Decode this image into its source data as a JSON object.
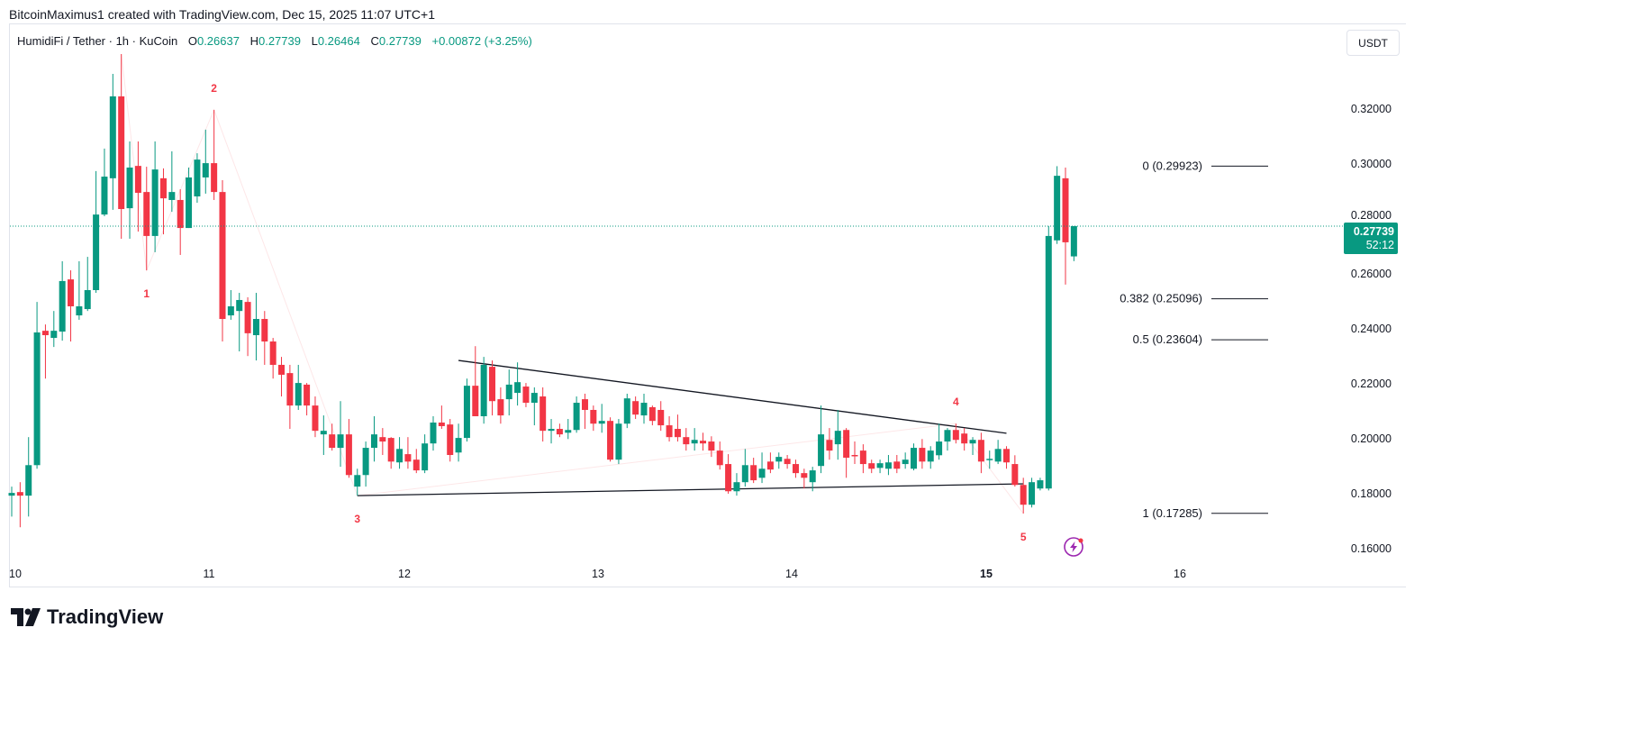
{
  "attribution": "BitcoinMaximus1 created with TradingView.com, Dec 15, 2025 11:07 UTC+1",
  "legend": {
    "symbol": "HumidiFi / Tether · 1h · KuCoin",
    "open_label": "O",
    "open": "0.26637",
    "high_label": "H",
    "high": "0.27739",
    "low_label": "L",
    "low": "0.26464",
    "close_label": "C",
    "close": "0.27739",
    "change": "+0.00872 (+3.25%)"
  },
  "currency_button": "USDT",
  "logo_text": "TradingView",
  "current_price": {
    "value": "0.27739",
    "countdown": "52:12"
  },
  "colors": {
    "up": "#089981",
    "down": "#F23645",
    "wave": "#F23645",
    "fib": "#131722",
    "trendline": "#131722",
    "alert": "#9C27B0"
  },
  "icons": {
    "alert": "lightning-icon",
    "logo": "tradingview-logo-icon"
  },
  "chart_data": {
    "type": "candlestick",
    "interval": "1h",
    "ylim": [
      0.155,
      0.34
    ],
    "y_ticks": [
      "0.32000",
      "0.30000",
      "0.28000",
      "0.26000",
      "0.24000",
      "0.22000",
      "0.20000",
      "0.18000",
      "0.16000"
    ],
    "x_ticks": [
      "10",
      "11",
      "12",
      "13",
      "14",
      "15",
      "16"
    ],
    "grid": false,
    "candles_ohlc": [
      [
        0.1793,
        0.1826,
        0.1717,
        0.1803
      ],
      [
        0.1806,
        0.1842,
        0.1678,
        0.1793
      ],
      [
        0.1793,
        0.2006,
        0.1717,
        0.1904
      ],
      [
        0.1904,
        0.2498,
        0.1891,
        0.2387
      ],
      [
        0.2393,
        0.2416,
        0.2219,
        0.2377
      ],
      [
        0.2367,
        0.2465,
        0.2334,
        0.2393
      ],
      [
        0.239,
        0.2646,
        0.2357,
        0.2574
      ],
      [
        0.258,
        0.2613,
        0.2354,
        0.2482
      ],
      [
        0.2449,
        0.2646,
        0.2433,
        0.2482
      ],
      [
        0.2472,
        0.2662,
        0.2465,
        0.2541
      ],
      [
        0.2541,
        0.2974,
        0.2531,
        0.2816
      ],
      [
        0.2816,
        0.3056,
        0.281,
        0.2954
      ],
      [
        0.2948,
        0.3328,
        0.2833,
        0.3246
      ],
      [
        0.3246,
        0.34,
        0.2728,
        0.2836
      ],
      [
        0.2839,
        0.3082,
        0.2728,
        0.2987
      ],
      [
        0.2993,
        0.3082,
        0.2754,
        0.2895
      ],
      [
        0.2898,
        0.299,
        0.2613,
        0.2738
      ],
      [
        0.2738,
        0.3082,
        0.2679,
        0.298
      ],
      [
        0.2948,
        0.2984,
        0.2744,
        0.2875
      ],
      [
        0.2869,
        0.3046,
        0.2826,
        0.2898
      ],
      [
        0.2869,
        0.2908,
        0.2669,
        0.2767
      ],
      [
        0.2767,
        0.2987,
        0.2767,
        0.2951
      ],
      [
        0.2882,
        0.3039,
        0.2859,
        0.3016
      ],
      [
        0.2951,
        0.3125,
        0.2892,
        0.3003
      ],
      [
        0.3003,
        0.3197,
        0.2869,
        0.2898
      ],
      [
        0.2898,
        0.2941,
        0.2354,
        0.2436
      ],
      [
        0.2449,
        0.2541,
        0.2433,
        0.2482
      ],
      [
        0.2465,
        0.2531,
        0.2318,
        0.2505
      ],
      [
        0.2498,
        0.2515,
        0.2301,
        0.2384
      ],
      [
        0.2377,
        0.2531,
        0.2285,
        0.2436
      ],
      [
        0.2436,
        0.2465,
        0.2269,
        0.2354
      ],
      [
        0.2354,
        0.2367,
        0.2219,
        0.2269
      ],
      [
        0.2269,
        0.2298,
        0.2154,
        0.2233
      ],
      [
        0.2239,
        0.2269,
        0.2036,
        0.2121
      ],
      [
        0.2121,
        0.2269,
        0.2105,
        0.2203
      ],
      [
        0.2197,
        0.2203,
        0.2085,
        0.2121
      ],
      [
        0.2121,
        0.2154,
        0.2006,
        0.2029
      ],
      [
        0.2016,
        0.2085,
        0.1941,
        0.2029
      ],
      [
        0.2016,
        0.2055,
        0.1957,
        0.1967
      ],
      [
        0.1967,
        0.2137,
        0.1898,
        0.2016
      ],
      [
        0.2016,
        0.2072,
        0.1858,
        0.1868
      ],
      [
        0.1826,
        0.1891,
        0.1793,
        0.1868
      ],
      [
        0.1868,
        0.199,
        0.1826,
        0.1967
      ],
      [
        0.1967,
        0.2082,
        0.1917,
        0.2016
      ],
      [
        0.2006,
        0.2039,
        0.1941,
        0.199
      ],
      [
        0.2003,
        0.2006,
        0.1891,
        0.1917
      ],
      [
        0.1914,
        0.2006,
        0.1891,
        0.1963
      ],
      [
        0.1944,
        0.2006,
        0.1891,
        0.1917
      ],
      [
        0.1924,
        0.1963,
        0.1875,
        0.1885
      ],
      [
        0.1885,
        0.2016,
        0.1875,
        0.1983
      ],
      [
        0.1983,
        0.2082,
        0.1957,
        0.2059
      ],
      [
        0.2059,
        0.2121,
        0.2036,
        0.2046
      ],
      [
        0.2052,
        0.2072,
        0.1917,
        0.1941
      ],
      [
        0.195,
        0.2055,
        0.1917,
        0.2003
      ],
      [
        0.2003,
        0.2219,
        0.199,
        0.2193
      ],
      [
        0.2193,
        0.2337,
        0.2082,
        0.2082
      ],
      [
        0.2082,
        0.2298,
        0.2055,
        0.2269
      ],
      [
        0.2262,
        0.2285,
        0.2085,
        0.2137
      ],
      [
        0.2144,
        0.2187,
        0.2055,
        0.2085
      ],
      [
        0.2144,
        0.2252,
        0.2085,
        0.2197
      ],
      [
        0.2167,
        0.2278,
        0.2121,
        0.2206
      ],
      [
        0.219,
        0.2203,
        0.2115,
        0.2131
      ],
      [
        0.2131,
        0.2187,
        0.2049,
        0.2167
      ],
      [
        0.2154,
        0.2187,
        0.199,
        0.2029
      ],
      [
        0.2029,
        0.2072,
        0.1983,
        0.2036
      ],
      [
        0.2036,
        0.2055,
        0.2006,
        0.2016
      ],
      [
        0.2022,
        0.2072,
        0.1999,
        0.2032
      ],
      [
        0.2032,
        0.2154,
        0.2022,
        0.2131
      ],
      [
        0.2144,
        0.2164,
        0.2036,
        0.2105
      ],
      [
        0.2105,
        0.2121,
        0.2029,
        0.2055
      ],
      [
        0.2055,
        0.2127,
        0.2022,
        0.2065
      ],
      [
        0.2065,
        0.2078,
        0.1917,
        0.1924
      ],
      [
        0.1924,
        0.2072,
        0.1908,
        0.2055
      ],
      [
        0.2055,
        0.2164,
        0.2039,
        0.2147
      ],
      [
        0.2137,
        0.2154,
        0.2072,
        0.2088
      ],
      [
        0.2085,
        0.2164,
        0.2055,
        0.2131
      ],
      [
        0.2115,
        0.2121,
        0.2049,
        0.2065
      ],
      [
        0.2105,
        0.2137,
        0.2029,
        0.2049
      ],
      [
        0.2049,
        0.2082,
        0.199,
        0.2006
      ],
      [
        0.2036,
        0.2088,
        0.199,
        0.2006
      ],
      [
        0.2006,
        0.2039,
        0.1957,
        0.198
      ],
      [
        0.1983,
        0.2039,
        0.1957,
        0.1996
      ],
      [
        0.1993,
        0.2022,
        0.1957,
        0.1983
      ],
      [
        0.199,
        0.2009,
        0.1934,
        0.1957
      ],
      [
        0.1957,
        0.199,
        0.1888,
        0.1904
      ],
      [
        0.1908,
        0.1944,
        0.18,
        0.1809
      ],
      [
        0.1809,
        0.1875,
        0.1793,
        0.1842
      ],
      [
        0.1842,
        0.1963,
        0.1826,
        0.1904
      ],
      [
        0.1904,
        0.1931,
        0.1839,
        0.1849
      ],
      [
        0.1858,
        0.195,
        0.1839,
        0.1891
      ],
      [
        0.1917,
        0.195,
        0.1875,
        0.1888
      ],
      [
        0.1917,
        0.195,
        0.1891,
        0.1934
      ],
      [
        0.1927,
        0.1941,
        0.1891,
        0.1908
      ],
      [
        0.1908,
        0.1924,
        0.1858,
        0.1875
      ],
      [
        0.1875,
        0.1891,
        0.1819,
        0.1858
      ],
      [
        0.1842,
        0.1898,
        0.1809,
        0.1885
      ],
      [
        0.1901,
        0.2121,
        0.1875,
        0.2016
      ],
      [
        0.1996,
        0.2039,
        0.1924,
        0.1957
      ],
      [
        0.198,
        0.2105,
        0.1924,
        0.2029
      ],
      [
        0.2032,
        0.2039,
        0.1858,
        0.1931
      ],
      [
        0.1941,
        0.199,
        0.1908,
        0.1937
      ],
      [
        0.1957,
        0.198,
        0.1875,
        0.1908
      ],
      [
        0.1911,
        0.1924,
        0.1875,
        0.1891
      ],
      [
        0.1894,
        0.1924,
        0.1875,
        0.1911
      ],
      [
        0.1891,
        0.1941,
        0.1868,
        0.1914
      ],
      [
        0.1917,
        0.1941,
        0.1875,
        0.1891
      ],
      [
        0.1908,
        0.195,
        0.1891,
        0.1924
      ],
      [
        0.1891,
        0.1983,
        0.1885,
        0.1967
      ],
      [
        0.1967,
        0.1999,
        0.1891,
        0.1917
      ],
      [
        0.1917,
        0.1973,
        0.1891,
        0.1957
      ],
      [
        0.194,
        0.2055,
        0.1924,
        0.199
      ],
      [
        0.199,
        0.2039,
        0.1957,
        0.2032
      ],
      [
        0.2032,
        0.2055,
        0.1983,
        0.1996
      ],
      [
        0.2019,
        0.2039,
        0.1957,
        0.1983
      ],
      [
        0.1983,
        0.2006,
        0.1941,
        0.1996
      ],
      [
        0.1996,
        0.2022,
        0.1875,
        0.1917
      ],
      [
        0.1924,
        0.1957,
        0.1891,
        0.1927
      ],
      [
        0.1917,
        0.1996,
        0.1908,
        0.1963
      ],
      [
        0.1963,
        0.1973,
        0.1891,
        0.1914
      ],
      [
        0.1908,
        0.194,
        0.1826,
        0.1832
      ],
      [
        0.1832,
        0.1858,
        0.1728,
        0.176
      ],
      [
        0.176,
        0.1858,
        0.175,
        0.1842
      ],
      [
        0.1819,
        0.1858,
        0.1812,
        0.1849
      ],
      [
        0.1819,
        0.2774,
        0.1812,
        0.2738
      ],
      [
        0.2722,
        0.2992,
        0.2709,
        0.2957
      ],
      [
        0.2948,
        0.2987,
        0.2561,
        0.2715
      ],
      [
        0.26637,
        0.27739,
        0.26464,
        0.27739
      ]
    ],
    "fib_levels": [
      {
        "label": "0 (0.29923)",
        "value": 0.29923
      },
      {
        "label": "0.382 (0.25096)",
        "value": 0.25096
      },
      {
        "label": "0.5 (0.23604)",
        "value": 0.23604
      },
      {
        "label": "1 (0.17285)",
        "value": 0.17285
      }
    ],
    "wave_labels": [
      {
        "label": "1",
        "candle": 16,
        "price": 0.2613,
        "pos": "below"
      },
      {
        "label": "2",
        "candle": 24,
        "price": 0.3197,
        "pos": "above"
      },
      {
        "label": "3",
        "candle": 41,
        "price": 0.1793,
        "pos": "below"
      },
      {
        "label": "4",
        "candle": 112,
        "price": 0.2055,
        "pos": "above"
      },
      {
        "label": "5",
        "candle": 120,
        "price": 0.1728,
        "pos": "below"
      }
    ],
    "trendlines": [
      {
        "from": [
          53,
          0.2285
        ],
        "to": [
          118,
          0.202
        ]
      },
      {
        "from": [
          41,
          0.1793
        ],
        "to": [
          120,
          0.1836
        ]
      }
    ]
  }
}
